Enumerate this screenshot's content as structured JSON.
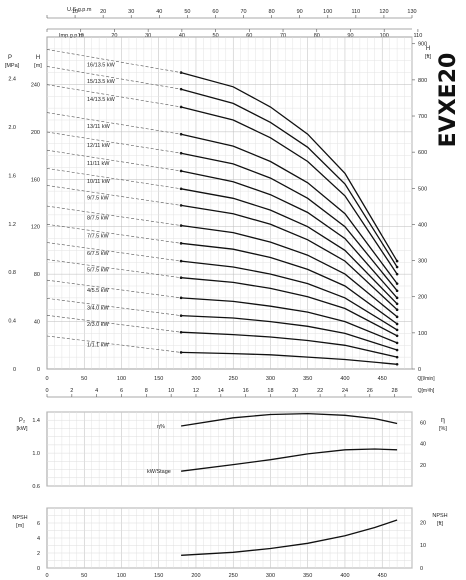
{
  "title": "EVXE20",
  "top_axes": {
    "usgpm_label": "U.S.g.p.m",
    "usgpm_ticks": [
      "0",
      "10",
      "20",
      "30",
      "40",
      "50",
      "60",
      "70",
      "80",
      "90",
      "100",
      "110",
      "120",
      "130"
    ],
    "usgpm_max": 130,
    "impgpm_label": "Imp.g.p.m",
    "impgpm_ticks": [
      "0",
      "10",
      "20",
      "30",
      "40",
      "50",
      "60",
      "70",
      "80",
      "90",
      "100",
      "110"
    ],
    "impgpm_max": 110
  },
  "flow_axis": {
    "lmin_ticks": [
      "0",
      "50",
      "100",
      "150",
      "200",
      "250",
      "300",
      "350",
      "400",
      "450"
    ],
    "lmin_unit": "Q[l/min]",
    "m3h_ticks": [
      "0",
      "2",
      "4",
      "6",
      "8",
      "10",
      "12",
      "14",
      "16",
      "18",
      "20",
      "22",
      "24",
      "26",
      "28"
    ],
    "m3h_unit": "Q[m³/h]",
    "lmin_max": 490
  },
  "head_panel": {
    "p_label": "P",
    "p_unit": "[MPa]",
    "p_ticks": [
      "0",
      "0.4",
      "0.8",
      "1.2",
      "1.6",
      "2.0",
      "2.4"
    ],
    "h_label": "H",
    "h_unit": "[m]",
    "h_ticks": [
      "0",
      "40",
      "80",
      "120",
      "160",
      "200",
      "240"
    ],
    "h_right_label": "H",
    "h_right_unit": "[ft]",
    "ft_ticks": [
      "0",
      "100",
      "200",
      "300",
      "400",
      "500",
      "600",
      "700",
      "800",
      "900"
    ],
    "ft_max": 920,
    "h_max": 280
  },
  "power_panel": {
    "p2_label": "P₂",
    "p2_unit": "[kW]",
    "p2_ticks": [
      "0.6",
      "1.0",
      "1.4"
    ],
    "eta_label": "η",
    "eta_unit": "[%]",
    "eta_ticks": [
      "20",
      "40",
      "60"
    ],
    "eff_curve_label": "η%",
    "kw_curve_label": "kW/Stage"
  },
  "npsh_panel": {
    "left_label": "NPSH",
    "left_unit": "[m]",
    "left_ticks": [
      "0",
      "2",
      "4",
      "6"
    ],
    "right_label": "NPSH",
    "right_unit": "[ft]",
    "right_ticks": [
      "0",
      "10",
      "20"
    ]
  },
  "chart_data": {
    "type": "line",
    "x_unit": "l/min",
    "q_points": [
      180,
      250,
      300,
      350,
      400,
      470
    ],
    "series": [
      {
        "name": "1/1.1 kW",
        "values": [
          14,
          13,
          12,
          10,
          8,
          4
        ]
      },
      {
        "name": "2/3.0 kW",
        "values": [
          31,
          29,
          27,
          24,
          20,
          10
        ]
      },
      {
        "name": "3/4.0 kW",
        "values": [
          45,
          43,
          40,
          36,
          30,
          16
        ]
      },
      {
        "name": "4/5.5 kW",
        "values": [
          60,
          57,
          53,
          48,
          40,
          22
        ]
      },
      {
        "name": "5/7.5 kW",
        "values": [
          77,
          73,
          68,
          61,
          51,
          28
        ]
      },
      {
        "name": "6/7.5 kW",
        "values": [
          91,
          86,
          80,
          72,
          60,
          33
        ]
      },
      {
        "name": "7/7.5 kW",
        "values": [
          106,
          101,
          94,
          84,
          70,
          38
        ]
      },
      {
        "name": "8/7.5 kW",
        "values": [
          121,
          115,
          107,
          96,
          80,
          44
        ]
      },
      {
        "name": "9/7.5 kW",
        "values": [
          138,
          131,
          122,
          109,
          91,
          50
        ]
      },
      {
        "name": "10/11 kW",
        "values": [
          152,
          144,
          134,
          120,
          100,
          55
        ]
      },
      {
        "name": "11/11 kW",
        "values": [
          167,
          158,
          147,
          132,
          110,
          60
        ]
      },
      {
        "name": "12/11 kW",
        "values": [
          182,
          173,
          161,
          144,
          120,
          66
        ]
      },
      {
        "name": "13/11 kW",
        "values": [
          198,
          188,
          175,
          157,
          131,
          72
        ]
      },
      {
        "name": "14/13.5 kW",
        "values": [
          221,
          210,
          195,
          175,
          146,
          80
        ]
      },
      {
        "name": "15/13.5 kW",
        "values": [
          236,
          224,
          208,
          187,
          156,
          86
        ]
      },
      {
        "name": "16/13.5 kW",
        "values": [
          250,
          238,
          221,
          198,
          165,
          91
        ]
      }
    ],
    "efficiency": {
      "x": [
        180,
        250,
        300,
        350,
        400,
        440,
        470
      ],
      "values": [
        1.33,
        1.43,
        1.47,
        1.48,
        1.46,
        1.42,
        1.36
      ]
    },
    "kw_stage": {
      "x": [
        180,
        250,
        300,
        350,
        400,
        440,
        470
      ],
      "values": [
        0.78,
        0.86,
        0.92,
        0.99,
        1.04,
        1.05,
        1.04
      ]
    },
    "npsh": {
      "x": [
        180,
        250,
        300,
        350,
        400,
        440,
        470
      ],
      "values": [
        1.7,
        2.1,
        2.6,
        3.3,
        4.3,
        5.4,
        6.4
      ]
    },
    "ylabel": "H [m]",
    "ylim": [
      0,
      280
    ],
    "xlim": [
      0,
      490
    ]
  }
}
